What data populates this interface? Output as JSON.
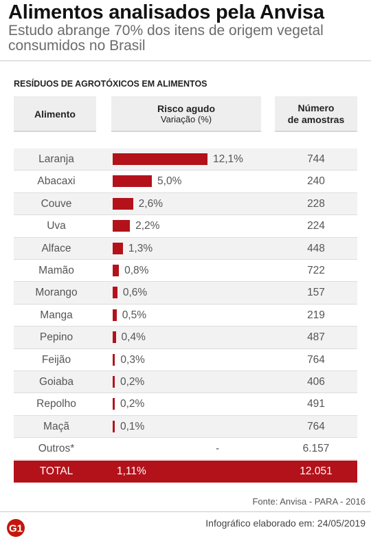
{
  "header": {
    "title": "Alimentos analisados pela Anvisa",
    "subtitle": "Estudo abrange 70% dos itens de origem vegetal consumidos no Brasil"
  },
  "chart_data": {
    "type": "table",
    "title": "RESÍDUOS DE AGROTÓXICOS EM ALIMENTOS",
    "columns": {
      "food": "Alimento",
      "risk": "Risco agudo",
      "risk_sub": "Variação (%)",
      "count_line1": "Número",
      "count_line2": "de amostras"
    },
    "rows": [
      {
        "food": "Laranja",
        "risk": 12.1,
        "risk_label": "12,1%",
        "count": "744"
      },
      {
        "food": "Abacaxi",
        "risk": 5.0,
        "risk_label": "5,0%",
        "count": "240"
      },
      {
        "food": "Couve",
        "risk": 2.6,
        "risk_label": "2,6%",
        "count": "228"
      },
      {
        "food": "Uva",
        "risk": 2.2,
        "risk_label": "2,2%",
        "count": "224"
      },
      {
        "food": "Alface",
        "risk": 1.3,
        "risk_label": "1,3%",
        "count": "448"
      },
      {
        "food": "Mamão",
        "risk": 0.8,
        "risk_label": "0,8%",
        "count": "722"
      },
      {
        "food": "Morango",
        "risk": 0.6,
        "risk_label": "0,6%",
        "count": "157"
      },
      {
        "food": "Manga",
        "risk": 0.5,
        "risk_label": "0,5%",
        "count": "219"
      },
      {
        "food": "Pepino",
        "risk": 0.4,
        "risk_label": "0,4%",
        "count": "487"
      },
      {
        "food": "Feijão",
        "risk": 0.3,
        "risk_label": "0,3%",
        "count": "764"
      },
      {
        "food": "Goiaba",
        "risk": 0.2,
        "risk_label": "0,2%",
        "count": "406"
      },
      {
        "food": "Repolho",
        "risk": 0.2,
        "risk_label": "0,2%",
        "count": "491"
      },
      {
        "food": "Maçã",
        "risk": 0.1,
        "risk_label": "0,1%",
        "count": "764"
      },
      {
        "food": "Outros*",
        "risk": null,
        "risk_label": "-",
        "count": "6.157"
      }
    ],
    "total": {
      "label": "TOTAL",
      "risk": "1,11%",
      "count": "12.051"
    },
    "colors": {
      "bar": "#b3121b",
      "total_bg": "#b3121b"
    }
  },
  "footer": {
    "source": "Fonte: Anvisa - PARA - 2016",
    "logo_text": "G1",
    "credit": "Infográfico elaborado em: 24/05/2019"
  }
}
